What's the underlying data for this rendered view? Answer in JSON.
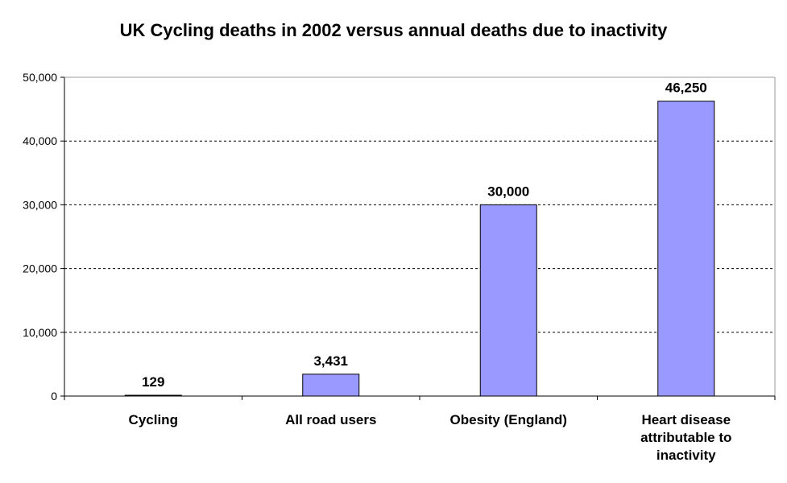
{
  "chart_data": {
    "type": "bar",
    "title": "UK Cycling deaths in 2002 versus annual deaths due to inactivity",
    "categories": [
      [
        "Cycling"
      ],
      [
        "All road users"
      ],
      [
        "Obesity (England)"
      ],
      [
        "Heart disease",
        "attributable to",
        "inactivity"
      ]
    ],
    "values": [
      129,
      3431,
      30000,
      46250
    ],
    "data_labels": [
      "129",
      "3,431",
      "30,000",
      "46,250"
    ],
    "ylim": [
      0,
      50000
    ],
    "yticks": [
      0,
      10000,
      20000,
      30000,
      40000,
      50000
    ],
    "ytick_labels": [
      "0",
      "10,000",
      "20,000",
      "30,000",
      "40,000",
      "50,000"
    ],
    "grid": "horizontal dashed",
    "legend": "none",
    "colors": {
      "bar_fill": "#9999FF",
      "bar_stroke": "#000000",
      "grid": "#000000",
      "background": "#FFFFFF"
    }
  }
}
